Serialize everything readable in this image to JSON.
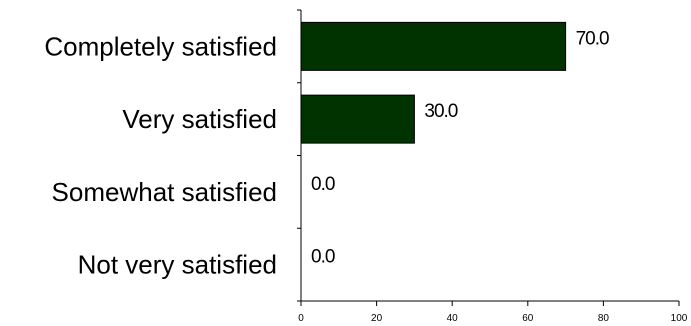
{
  "chart_data": {
    "type": "bar",
    "orientation": "horizontal",
    "title": "",
    "xlabel": "",
    "ylabel": "",
    "categories": [
      "Completely satisfied",
      "Very satisfied",
      "Somewhat satisfied",
      "Not very satisfied"
    ],
    "values": [
      70.0,
      30.0,
      0.0,
      0.0
    ],
    "value_labels": [
      "70.0",
      "30.0",
      "0.0",
      "0.0"
    ],
    "xlim": [
      0,
      100
    ],
    "xticks": [
      0,
      20,
      40,
      60,
      80,
      100
    ],
    "grid": false,
    "legend": "none",
    "bar_color": "#003300"
  }
}
